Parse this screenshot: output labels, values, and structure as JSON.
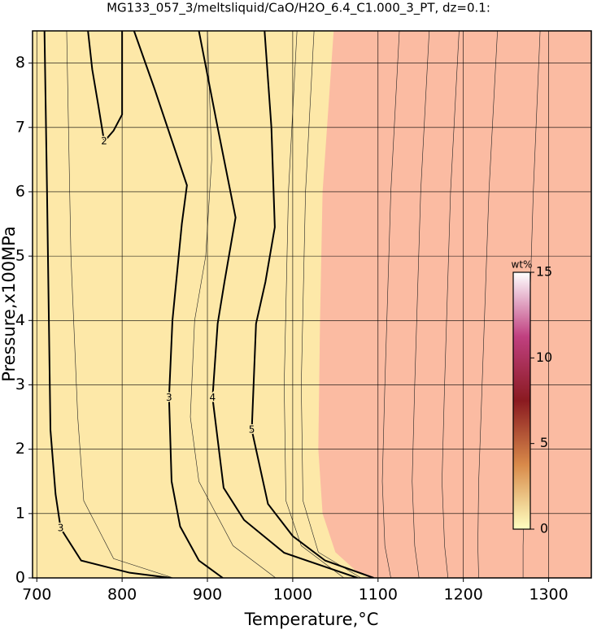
{
  "chart_data": {
    "type": "contour",
    "title": "MG133_057_3/meltsliquid/CaO/H2O_6.4_C1.000_3_PT, dz=0.1:",
    "x_label": "Temperature,°C",
    "y_label": "Pressure,x100MPa",
    "xlim": [
      695,
      1350
    ],
    "xticks": [
      700,
      800,
      900,
      1000,
      1100,
      1200,
      1300
    ],
    "ylim": [
      0,
      8.5
    ],
    "yticks": [
      0,
      1,
      2,
      3,
      4,
      5,
      6,
      7,
      8
    ],
    "grid": true,
    "background": "#fde8a8",
    "regions": [
      {
        "color": "#fbbba2",
        "x": [
          1048,
          1035,
          1032,
          1030,
          1035,
          1050,
          1075,
          1090,
          1350,
          1350
        ],
        "y": [
          8.5,
          6,
          4,
          2,
          1,
          0.4,
          0.1,
          0,
          0,
          8.5
        ]
      }
    ],
    "contours": [
      {
        "level": 2,
        "x": [
          760,
          765,
          772,
          779,
          790,
          800,
          800
        ],
        "y": [
          8.5,
          7.9,
          7.35,
          6.78,
          6.95,
          7.2,
          8.5
        ]
      },
      {
        "level": 3,
        "x": [
          709,
          712,
          716,
          722,
          728,
          752,
          809,
          857
        ],
        "y": [
          8.5,
          6,
          2.3,
          1.3,
          0.77,
          0.27,
          0.08,
          0
        ]
      },
      {
        "level": 3,
        "x": [
          814,
          838,
          876,
          870,
          859,
          855,
          858,
          868,
          890,
          918
        ],
        "y": [
          8.5,
          7.6,
          6.1,
          5.5,
          4,
          2.8,
          1.5,
          0.8,
          0.27,
          0
        ]
      },
      {
        "level": 4,
        "x": [
          890,
          912,
          933,
          920,
          912,
          906,
          919,
          943,
          990,
          1076
        ],
        "y": [
          8.5,
          7,
          5.6,
          4.6,
          3.95,
          2.8,
          1.4,
          0.9,
          0.39,
          0
        ]
      },
      {
        "level": 5,
        "x": [
          967,
          975,
          979,
          968,
          957,
          952,
          971,
          1000,
          1038,
          1095
        ],
        "y": [
          8.5,
          7,
          5.45,
          4.6,
          3.95,
          2.3,
          1.15,
          0.65,
          0.27,
          0
        ]
      }
    ],
    "minor_contours": [
      {
        "x": [
          1005,
          995,
          990,
          992,
          1010,
          1060
        ],
        "y": [
          8.5,
          6,
          3,
          1.2,
          0.5,
          0
        ]
      },
      {
        "x": [
          1025,
          1015,
          1010,
          1012,
          1030,
          1080
        ],
        "y": [
          8.5,
          6,
          3,
          1.2,
          0.4,
          0
        ]
      },
      {
        "x": [
          1125,
          1115,
          1108,
          1105,
          1108,
          1115
        ],
        "y": [
          8.5,
          6,
          3,
          1.5,
          0.5,
          0
        ]
      },
      {
        "x": [
          1160,
          1150,
          1143,
          1140,
          1143,
          1148
        ],
        "y": [
          8.5,
          6,
          3,
          1.5,
          0.5,
          0
        ]
      },
      {
        "x": [
          1195,
          1185,
          1178,
          1175,
          1178,
          1182
        ],
        "y": [
          8.5,
          6,
          3,
          1.5,
          0.5,
          0
        ]
      },
      {
        "x": [
          1240,
          1230,
          1222,
          1218,
          1217,
          1218
        ],
        "y": [
          8.5,
          6,
          3,
          1.5,
          0.5,
          0
        ]
      },
      {
        "x": [
          1290,
          1282,
          1275,
          1272,
          1270,
          1270
        ],
        "y": [
          8.5,
          6,
          3,
          1.5,
          0.5,
          0
        ]
      },
      {
        "x": [
          735,
          740,
          748,
          755,
          790,
          860
        ],
        "y": [
          8.5,
          5,
          2.5,
          1.2,
          0.3,
          0
        ]
      },
      {
        "x": [
          900,
          905,
          898,
          885,
          880,
          890,
          930,
          980
        ],
        "y": [
          8.5,
          6.5,
          5,
          4,
          2.5,
          1.5,
          0.5,
          0
        ]
      }
    ],
    "colorbar": {
      "label": "wt%",
      "lim": [
        0,
        15
      ],
      "ticks": [
        0,
        5,
        10,
        15
      ],
      "colors": [
        "#ffffc0",
        "#d88a4a",
        "#8a1a20",
        "#c04080",
        "#ffffff"
      ]
    }
  }
}
